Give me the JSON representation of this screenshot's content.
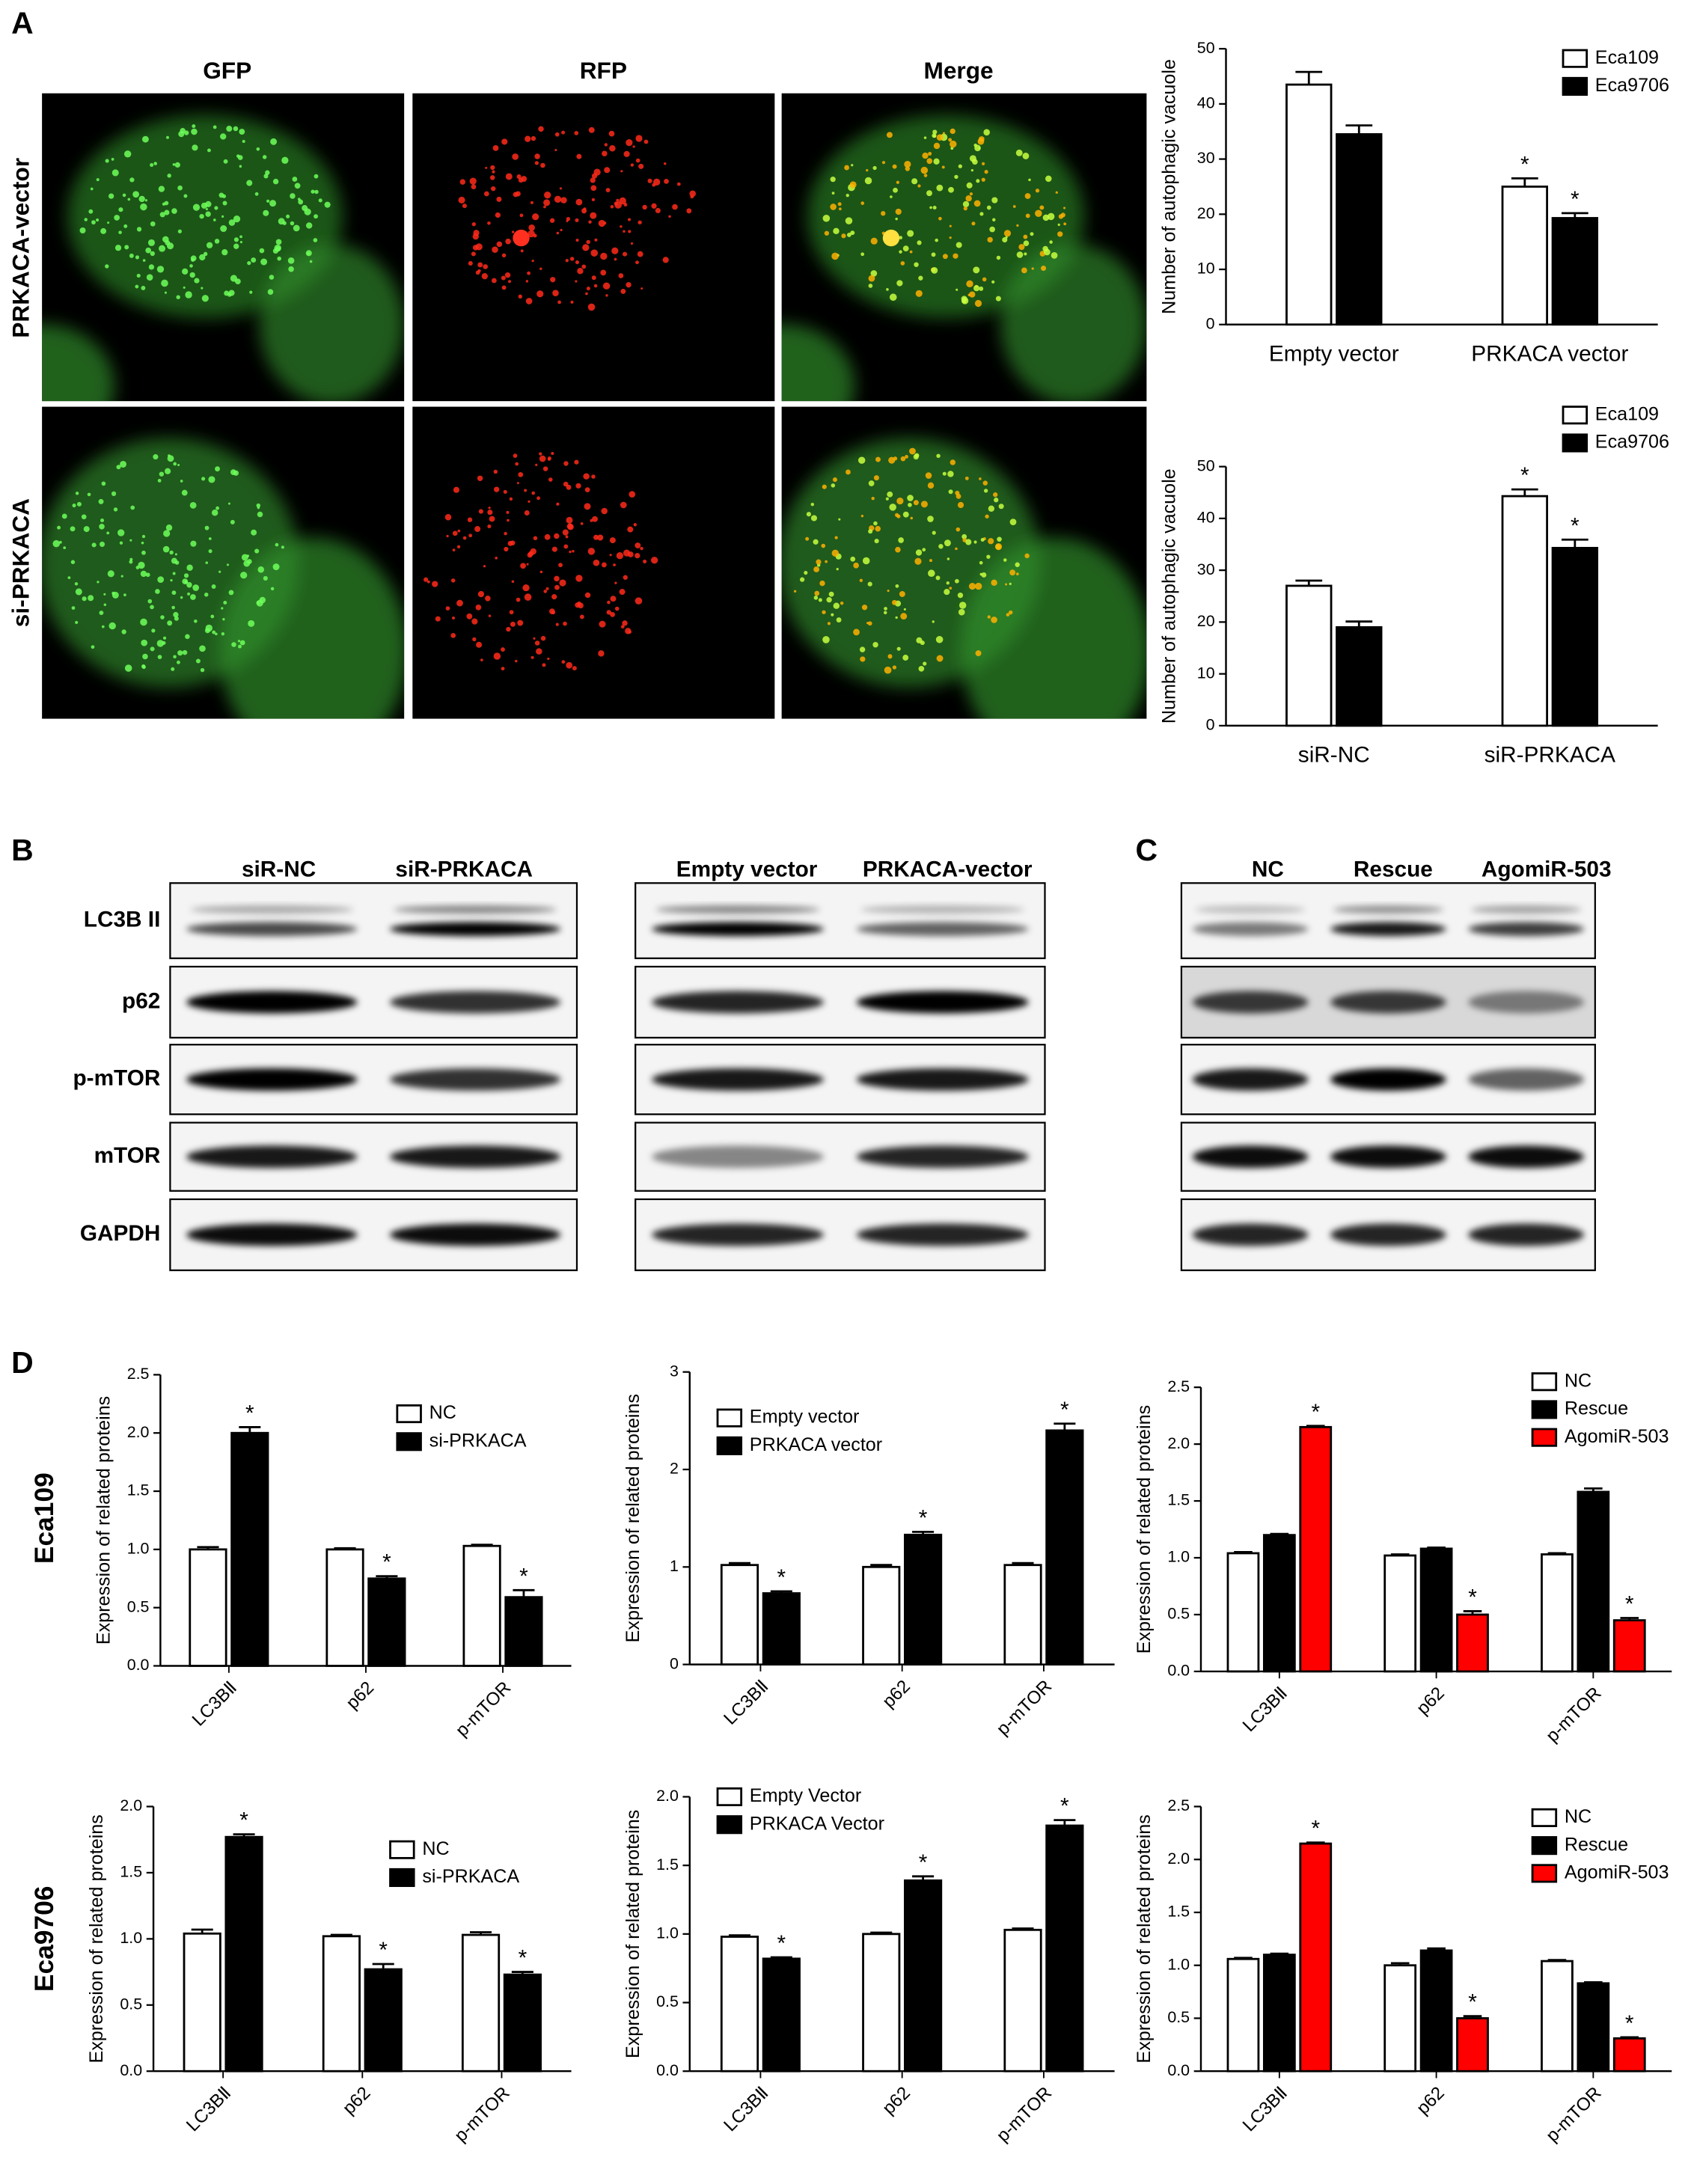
{
  "figure": {
    "panel_labels": [
      "A",
      "B",
      "C",
      "D"
    ],
    "image_columns": [
      "GFP",
      "RFP",
      "Merge"
    ],
    "image_rows": [
      "PRKACA-vector",
      "si-PRKACA"
    ],
    "blot_proteins": [
      "LC3B II",
      "p62",
      "p-mTOR",
      "mTOR",
      "GAPDH"
    ],
    "blots": [
      {
        "columns": [
          "siR-NC",
          "siR-PRKACA"
        ]
      },
      {
        "columns": [
          "Empty vector",
          "PRKACA-vector"
        ]
      },
      {
        "columns": [
          "NC",
          "Rescue",
          "AgomiR-503"
        ]
      }
    ],
    "chart_rows": [
      "Eca109",
      "Eca9706"
    ]
  },
  "chart_data": [
    {
      "type": "bar",
      "ylabel": "Number of autophagic vacuole",
      "categories": [
        "Empty vector",
        "PRKACA vector"
      ],
      "ylim": [
        0,
        50
      ],
      "yticks": [
        0,
        10,
        20,
        30,
        40,
        50
      ],
      "legend": "upper right",
      "series": [
        {
          "name": "Eca109",
          "color": "#ffffff",
          "values": [
            43.5,
            25
          ],
          "errors": [
            2.3,
            1.5
          ],
          "markers": [
            null,
            "*"
          ]
        },
        {
          "name": "Eca9706",
          "color": "#000000",
          "values": [
            34.5,
            19.3
          ],
          "errors": [
            1.6,
            0.9
          ],
          "markers": [
            null,
            "*"
          ]
        }
      ]
    },
    {
      "type": "bar",
      "ylabel": "Number of autophagic vacuole",
      "categories": [
        "siR-NC",
        "siR-PRKACA"
      ],
      "ylim": [
        0,
        50
      ],
      "yticks": [
        0,
        10,
        20,
        30,
        40,
        50
      ],
      "legend": "upper right",
      "series": [
        {
          "name": "Eca109",
          "color": "#ffffff",
          "values": [
            27,
            44.3
          ],
          "errors": [
            1.0,
            1.3
          ],
          "markers": [
            null,
            "*"
          ]
        },
        {
          "name": "Eca9706",
          "color": "#000000",
          "values": [
            19,
            34.3
          ],
          "errors": [
            1.1,
            1.6
          ],
          "markers": [
            null,
            "*"
          ]
        }
      ]
    },
    {
      "type": "bar",
      "ylabel": "Expression of related proteins",
      "categories": [
        "LC3BⅡ",
        "p62",
        "p-mTOR"
      ],
      "xtick_rotation": -45,
      "ylim": [
        0,
        2.5
      ],
      "yticks": [
        {
          "value": 0,
          "label": "0.0"
        },
        0.5,
        {
          "value": 1,
          "label": "1.0"
        },
        1.5,
        {
          "value": 2,
          "label": "2.0"
        },
        2.5
      ],
      "legend": "upper right",
      "series": [
        {
          "name": "NC",
          "color": "#ffffff",
          "values": [
            1.0,
            1.0,
            1.03
          ],
          "errors": [
            0.02,
            0.01,
            0.01
          ],
          "markers": [
            null,
            null,
            null
          ]
        },
        {
          "name": "si-PRKACA",
          "color": "#000000",
          "values": [
            2.0,
            0.75,
            0.59
          ],
          "errors": [
            0.05,
            0.02,
            0.06
          ],
          "markers": [
            "*",
            "*",
            "*"
          ]
        }
      ]
    },
    {
      "type": "bar",
      "ylabel": "Expression of related proteins",
      "categories": [
        "LC3BⅡ",
        "p62",
        "p-mTOR"
      ],
      "xtick_rotation": -45,
      "ylim": [
        0,
        3
      ],
      "yticks": [
        0,
        1,
        2,
        3
      ],
      "legend": "upper left",
      "series": [
        {
          "name": "Empty vector",
          "color": "#ffffff",
          "values": [
            1.02,
            1.0,
            1.02
          ],
          "errors": [
            0.02,
            0.02,
            0.02
          ],
          "markers": [
            null,
            null,
            null
          ]
        },
        {
          "name": "PRKACA vector",
          "color": "#000000",
          "values": [
            0.73,
            1.33,
            2.4
          ],
          "errors": [
            0.02,
            0.03,
            0.07
          ],
          "markers": [
            "*",
            "*",
            "*"
          ]
        }
      ]
    },
    {
      "type": "bar",
      "ylabel": "Expression of related proteins",
      "categories": [
        "LC3BⅡ",
        "p62",
        "p-mTOR"
      ],
      "xtick_rotation": -45,
      "ylim": [
        0,
        2.5
      ],
      "yticks": [
        {
          "value": 0,
          "label": "0.0"
        },
        0.5,
        {
          "value": 1,
          "label": "1.0"
        },
        1.5,
        {
          "value": 2,
          "label": "2.0"
        },
        2.5
      ],
      "legend": "upper right",
      "series": [
        {
          "name": "NC",
          "color": "#ffffff",
          "values": [
            1.04,
            1.02,
            1.03
          ],
          "errors": [
            0.01,
            0.01,
            0.01
          ],
          "markers": [
            null,
            null,
            null
          ]
        },
        {
          "name": "Rescue",
          "color": "#000000",
          "values": [
            1.2,
            1.08,
            1.58
          ],
          "errors": [
            0.01,
            0.01,
            0.03
          ],
          "markers": [
            null,
            null,
            null
          ]
        },
        {
          "name": "AgomiR-503",
          "color": "#ff0000",
          "values": [
            2.15,
            0.5,
            0.45
          ],
          "errors": [
            0.01,
            0.03,
            0.02
          ],
          "markers": [
            "*",
            "*",
            "*"
          ]
        }
      ]
    },
    {
      "type": "bar",
      "ylabel": "Expression of related proteins",
      "categories": [
        "LC3BⅡ",
        "p62",
        "p-mTOR"
      ],
      "xtick_rotation": -45,
      "ylim": [
        0,
        2
      ],
      "yticks": [
        {
          "value": 0,
          "label": "0.0"
        },
        0.5,
        {
          "value": 1,
          "label": "1.0"
        },
        1.5,
        {
          "value": 2,
          "label": "2.0"
        }
      ],
      "legend": "upper right",
      "series": [
        {
          "name": "NC",
          "color": "#ffffff",
          "values": [
            1.04,
            1.02,
            1.03
          ],
          "errors": [
            0.03,
            0.01,
            0.02
          ],
          "markers": [
            null,
            null,
            null
          ]
        },
        {
          "name": "si-PRKACA",
          "color": "#000000",
          "values": [
            1.77,
            0.77,
            0.73
          ],
          "errors": [
            0.02,
            0.04,
            0.02
          ],
          "markers": [
            "*",
            "*",
            "*"
          ]
        }
      ]
    },
    {
      "type": "bar",
      "ylabel": "Expression of related proteins",
      "categories": [
        "LC3BⅡ",
        "p62",
        "p-mTOR"
      ],
      "xtick_rotation": -45,
      "ylim": [
        0,
        2
      ],
      "yticks": [
        {
          "value": 0,
          "label": "0.0"
        },
        0.5,
        {
          "value": 1,
          "label": "1.0"
        },
        1.5,
        {
          "value": 2,
          "label": "2.0"
        }
      ],
      "legend": "upper left",
      "series": [
        {
          "name": "Empty Vector",
          "color": "#ffffff",
          "values": [
            0.98,
            1.0,
            1.03
          ],
          "errors": [
            0.01,
            0.01,
            0.01
          ],
          "markers": [
            null,
            null,
            null
          ]
        },
        {
          "name": "PRKACA Vector",
          "color": "#000000",
          "values": [
            0.82,
            1.39,
            1.79
          ],
          "errors": [
            0.01,
            0.03,
            0.04
          ],
          "markers": [
            "*",
            "*",
            "*"
          ]
        }
      ]
    },
    {
      "type": "bar",
      "ylabel": "Expression of related proteins",
      "categories": [
        "LC3BⅡ",
        "p62",
        "p-mTOR"
      ],
      "xtick_rotation": -45,
      "ylim": [
        0,
        2.5
      ],
      "yticks": [
        {
          "value": 0,
          "label": "0.0"
        },
        0.5,
        {
          "value": 1,
          "label": "1.0"
        },
        1.5,
        {
          "value": 2,
          "label": "2.0"
        },
        2.5
      ],
      "legend": "upper right",
      "series": [
        {
          "name": "NC",
          "color": "#ffffff",
          "values": [
            1.06,
            1.0,
            1.04
          ],
          "errors": [
            0.01,
            0.02,
            0.01
          ],
          "markers": [
            null,
            null,
            null
          ]
        },
        {
          "name": "Rescue",
          "color": "#000000",
          "values": [
            1.1,
            1.14,
            0.83
          ],
          "errors": [
            0.01,
            0.02,
            0.01
          ],
          "markers": [
            null,
            null,
            null
          ]
        },
        {
          "name": "AgomiR-503",
          "color": "#ff0000",
          "values": [
            2.15,
            0.5,
            0.31
          ],
          "errors": [
            0.01,
            0.02,
            0.01
          ],
          "markers": [
            "*",
            "*",
            "*"
          ]
        }
      ]
    }
  ]
}
